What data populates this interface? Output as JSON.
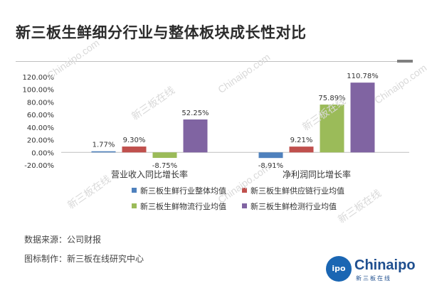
{
  "title": "新三板生鲜细分行业与整体板块成长性对比",
  "footer": {
    "source_label": "数据来源：",
    "source_value": "公司财报",
    "maker_label": "图标制作：",
    "maker_value": "新三板在线研究中心"
  },
  "logo": {
    "badge": "ipo",
    "wordmark": "Chinaipo",
    "subtitle": "新三板在线"
  },
  "watermarks": [
    "Chinaipo.com",
    "新三板在线",
    "Chinaipo.com",
    "新三板在线",
    "Chinaipo.com",
    "新三板在线",
    "Chinaipo.com",
    "新三板在线"
  ],
  "chart_data": {
    "type": "bar",
    "categories": [
      "营业收入同比增长率",
      "净利润同比增长率"
    ],
    "series": [
      {
        "name": "新三板生鲜行业整体均值",
        "color": "#4f81bd",
        "values": [
          1.77,
          -8.91
        ],
        "labels": [
          "1.77%",
          "-8.91%"
        ]
      },
      {
        "name": "新三板生鲜供应链行业均值",
        "color": "#c0504d",
        "values": [
          9.3,
          9.21
        ],
        "labels": [
          "9.30%",
          "9.21%"
        ]
      },
      {
        "name": "新三板生鲜物流行业均值",
        "color": "#9bbb59",
        "values": [
          -8.75,
          75.89
        ],
        "labels": [
          "-8.75%",
          "75.89%"
        ]
      },
      {
        "name": "新三板生鲜检测行业均值",
        "color": "#8064a2",
        "values": [
          52.25,
          110.78
        ],
        "labels": [
          "52.25%",
          "110.78%"
        ]
      }
    ],
    "yticks": [
      "120.00%",
      "100.00%",
      "80.00%",
      "60.00%",
      "40.00%",
      "20.00%",
      "0.00%",
      "-20.00%"
    ],
    "ylim": [
      -20,
      120
    ],
    "grid": false,
    "legend_position": "bottom"
  }
}
